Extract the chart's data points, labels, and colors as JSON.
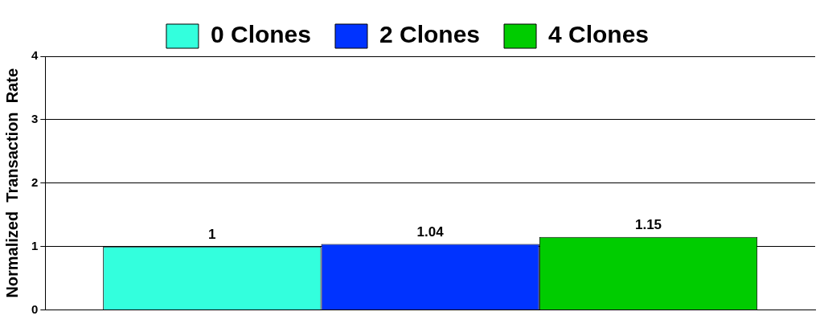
{
  "chart_data": {
    "type": "bar",
    "ylabel": "Normalized  Transaction  Rate",
    "categories": [
      null
    ],
    "series": [
      {
        "name": "0 Clones",
        "color": "#33ffdd",
        "values": [
          1
        ]
      },
      {
        "name": "2 Clones",
        "color": "#0033ff",
        "values": [
          1.04
        ]
      },
      {
        "name": "4 Clones",
        "color": "#00cc00",
        "values": [
          1.15
        ]
      }
    ],
    "ylim": [
      0,
      4
    ],
    "yticks": [
      0,
      1,
      2,
      3,
      4
    ],
    "grid": "y",
    "legend": "top",
    "data_labels": true
  }
}
